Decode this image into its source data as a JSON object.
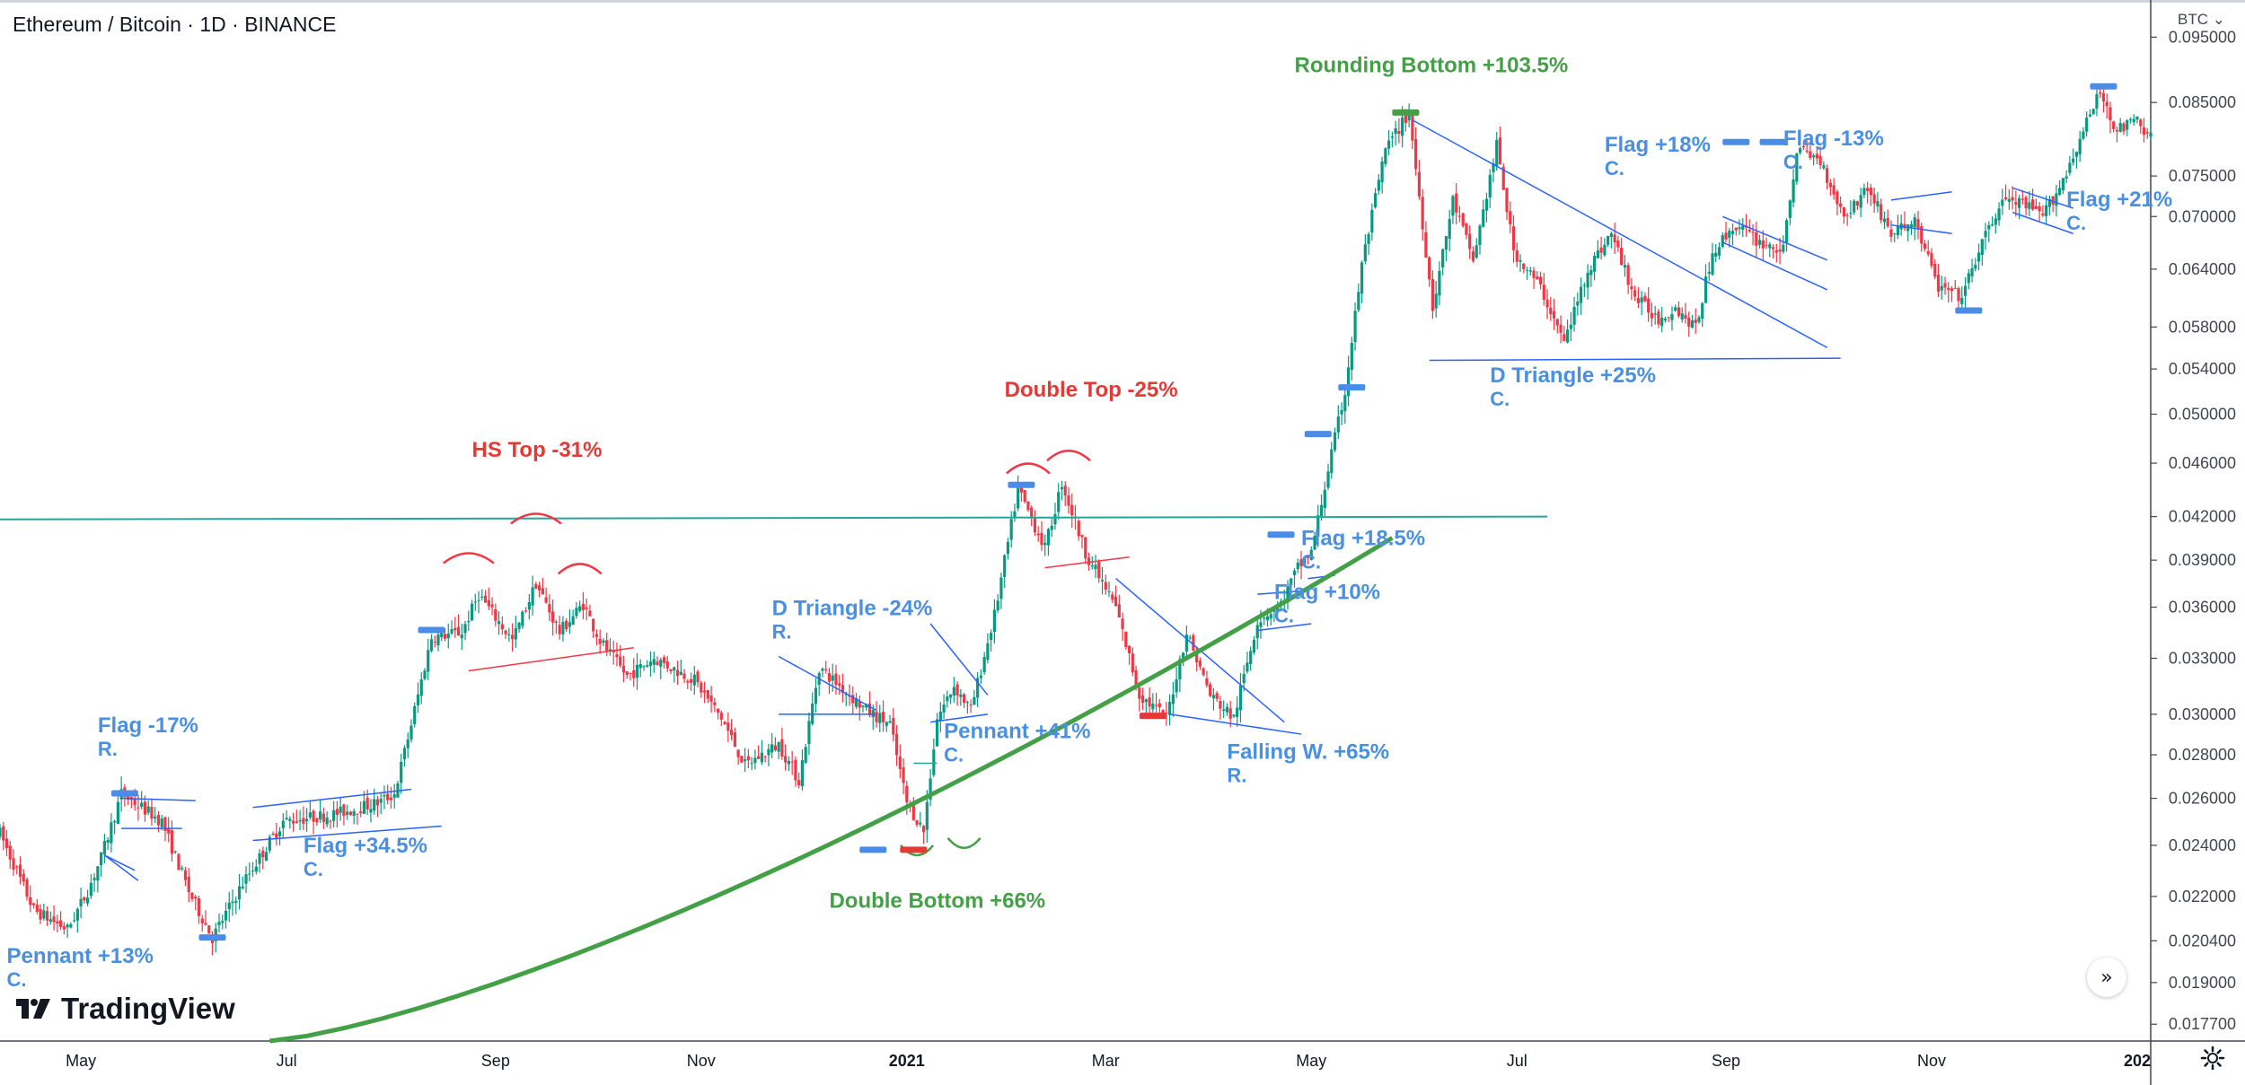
{
  "header": {
    "title": "Ethereum / Bitcoin · 1D · BINANCE",
    "currency_label": "BTC"
  },
  "branding": {
    "logo_text": "TradingView"
  },
  "icons": {
    "settings": "gear-icon",
    "scroll_to_latest": "fast-forward-icon",
    "currency_menu": "chevron-down-icon"
  },
  "colors": {
    "up": "#089981",
    "down": "#f23645",
    "bull_pattern": "#2962ff",
    "bear_pattern": "#f23645",
    "support": "#43a047",
    "level_bar": "#4c8ce9",
    "dead_bar": "#e53935",
    "success_bar": "#43a047"
  },
  "chart_data": {
    "type": "candlestick",
    "title": "Ethereum / Bitcoin · 1D · BINANCE",
    "y_axis": {
      "scale": "log",
      "ylim": [
        0.0172,
        0.1012
      ],
      "ticks": [
        "0.095000",
        "0.085000",
        "0.075000",
        "0.070000",
        "0.064000",
        "0.058000",
        "0.054000",
        "0.050000",
        "0.046000",
        "0.042000",
        "0.039000",
        "0.036000",
        "0.033000",
        "0.030000",
        "0.028000",
        "0.026000",
        "0.024000",
        "0.022000",
        "0.020400",
        "0.019000",
        "0.017700"
      ]
    },
    "x_axis": {
      "range": [
        "2020-04-07",
        "2022-01-05"
      ],
      "ticks": [
        {
          "date": "2020-05-01",
          "label": "May",
          "bold": false
        },
        {
          "date": "2020-07-01",
          "label": "Jul",
          "bold": false
        },
        {
          "date": "2020-09-01",
          "label": "Sep",
          "bold": false
        },
        {
          "date": "2020-11-01",
          "label": "Nov",
          "bold": false
        },
        {
          "date": "2021-01-01",
          "label": "2021",
          "bold": true
        },
        {
          "date": "2021-03-01",
          "label": "Mar",
          "bold": false
        },
        {
          "date": "2021-05-01",
          "label": "May",
          "bold": false
        },
        {
          "date": "2021-07-01",
          "label": "Jul",
          "bold": false
        },
        {
          "date": "2021-09-01",
          "label": "Sep",
          "bold": false
        },
        {
          "date": "2021-11-01",
          "label": "Nov",
          "bold": false
        },
        {
          "date": "2022-01-01",
          "label": "202",
          "bold": true
        }
      ]
    },
    "price_path": [
      [
        "2020-04-07",
        0.0245
      ],
      [
        "2020-04-17",
        0.0215
      ],
      [
        "2020-04-27",
        0.0208
      ],
      [
        "2020-05-03",
        0.0222
      ],
      [
        "2020-05-07",
        0.0235
      ],
      [
        "2020-05-13",
        0.0262
      ],
      [
        "2020-05-25",
        0.025
      ],
      [
        "2020-06-02",
        0.0222
      ],
      [
        "2020-06-09",
        0.0205
      ],
      [
        "2020-06-18",
        0.0225
      ],
      [
        "2020-06-30",
        0.025
      ],
      [
        "2020-07-15",
        0.0253
      ],
      [
        "2020-07-28",
        0.0258
      ],
      [
        "2020-08-02",
        0.0262
      ],
      [
        "2020-08-07",
        0.0295
      ],
      [
        "2020-08-13",
        0.0342
      ],
      [
        "2020-08-22",
        0.0345
      ],
      [
        "2020-08-27",
        0.0368
      ],
      [
        "2020-09-06",
        0.034
      ],
      [
        "2020-09-13",
        0.0375
      ],
      [
        "2020-09-20",
        0.0345
      ],
      [
        "2020-09-27",
        0.0362
      ],
      [
        "2020-10-02",
        0.034
      ],
      [
        "2020-10-10",
        0.032
      ],
      [
        "2020-10-18",
        0.033
      ],
      [
        "2020-10-30",
        0.0318
      ],
      [
        "2020-11-07",
        0.0298
      ],
      [
        "2020-11-14",
        0.0275
      ],
      [
        "2020-11-24",
        0.0285
      ],
      [
        "2020-11-30",
        0.0268
      ],
      [
        "2020-12-06",
        0.0325
      ],
      [
        "2020-12-20",
        0.0302
      ],
      [
        "2020-12-27",
        0.0295
      ],
      [
        "2021-01-01",
        0.0258
      ],
      [
        "2021-01-06",
        0.0246
      ],
      [
        "2021-01-10",
        0.0298
      ],
      [
        "2021-01-15",
        0.0315
      ],
      [
        "2021-01-20",
        0.0302
      ],
      [
        "2021-01-27",
        0.0355
      ],
      [
        "2021-02-03",
        0.044
      ],
      [
        "2021-02-11",
        0.0398
      ],
      [
        "2021-02-16",
        0.0445
      ],
      [
        "2021-02-23",
        0.0395
      ],
      [
        "2021-03-04",
        0.036
      ],
      [
        "2021-03-11",
        0.031
      ],
      [
        "2021-03-19",
        0.0298
      ],
      [
        "2021-03-25",
        0.0345
      ],
      [
        "2021-04-01",
        0.031
      ],
      [
        "2021-04-08",
        0.0298
      ],
      [
        "2021-04-15",
        0.0352
      ],
      [
        "2021-04-22",
        0.0362
      ],
      [
        "2021-04-27",
        0.0385
      ],
      [
        "2021-05-01",
        0.0395
      ],
      [
        "2021-05-06",
        0.0455
      ],
      [
        "2021-05-11",
        0.052
      ],
      [
        "2021-05-16",
        0.0645
      ],
      [
        "2021-05-23",
        0.0785
      ],
      [
        "2021-05-30",
        0.0835
      ],
      [
        "2021-06-06",
        0.06
      ],
      [
        "2021-06-12",
        0.072
      ],
      [
        "2021-06-18",
        0.065
      ],
      [
        "2021-06-25",
        0.079
      ],
      [
        "2021-06-30",
        0.066
      ],
      [
        "2021-07-08",
        0.062
      ],
      [
        "2021-07-15",
        0.0565
      ],
      [
        "2021-07-22",
        0.064
      ],
      [
        "2021-07-29",
        0.068
      ],
      [
        "2021-08-05",
        0.061
      ],
      [
        "2021-08-12",
        0.0588
      ],
      [
        "2021-08-17",
        0.06
      ],
      [
        "2021-08-23",
        0.0578
      ],
      [
        "2021-08-28",
        0.066
      ],
      [
        "2021-09-04",
        0.069
      ],
      [
        "2021-09-11",
        0.067
      ],
      [
        "2021-09-18",
        0.066
      ],
      [
        "2021-09-22",
        0.0785
      ],
      [
        "2021-09-29",
        0.077
      ],
      [
        "2021-10-06",
        0.07
      ],
      [
        "2021-10-13",
        0.0735
      ],
      [
        "2021-10-20",
        0.068
      ],
      [
        "2021-10-27",
        0.0695
      ],
      [
        "2021-11-03",
        0.062
      ],
      [
        "2021-11-10",
        0.061
      ],
      [
        "2021-11-15",
        0.066
      ],
      [
        "2021-11-22",
        0.072
      ],
      [
        "2021-11-28",
        0.0715
      ],
      [
        "2021-12-04",
        0.07
      ],
      [
        "2021-12-10",
        0.0745
      ],
      [
        "2021-12-16",
        0.081
      ],
      [
        "2021-12-21",
        0.0865
      ],
      [
        "2021-12-26",
        0.081
      ],
      [
        "2022-01-01",
        0.0825
      ],
      [
        "2022-01-05",
        0.08
      ]
    ],
    "annotations": [
      {
        "label": [
          "Pennant +13%",
          "C."
        ],
        "date": "2020-04-09",
        "price": 0.01965,
        "color": "blue"
      },
      {
        "label": [
          "Flag -17%",
          "R."
        ],
        "date": "2020-05-06",
        "price": 0.0291,
        "color": "blue"
      },
      {
        "label": [
          "Flag +34.5%",
          "C."
        ],
        "date": "2020-07-06",
        "price": 0.0237,
        "color": "blue"
      },
      {
        "label": [
          "HS Top -31%"
        ],
        "date": "2020-08-25",
        "price": 0.0465,
        "color": "red"
      },
      {
        "label": [
          "D Triangle -24%",
          "R."
        ],
        "date": "2020-11-22",
        "price": 0.0355,
        "color": "blue"
      },
      {
        "label": [
          "Pennant +41%",
          "C."
        ],
        "date": "2021-01-12",
        "price": 0.0288,
        "color": "blue"
      },
      {
        "label": [
          "Double Top -25%"
        ],
        "date": "2021-01-30",
        "price": 0.0515,
        "color": "red"
      },
      {
        "label": [
          "Double Bottom +66%"
        ],
        "date": "2020-12-09",
        "price": 0.02158,
        "color": "green"
      },
      {
        "label": [
          "Falling W. +65%",
          "R."
        ],
        "date": "2021-04-06",
        "price": 0.0278,
        "color": "blue"
      },
      {
        "label": [
          "Flag +18.5%",
          "C."
        ],
        "date": "2021-04-28",
        "price": 0.04,
        "color": "blue"
      },
      {
        "label": [
          "Flag +10%",
          "C."
        ],
        "date": "2021-04-20",
        "price": 0.0365,
        "color": "blue"
      },
      {
        "label": [
          "Rounding Bottom +103.5%"
        ],
        "date": "2021-04-26",
        "price": 0.0895,
        "color": "green"
      },
      {
        "label": [
          "D Triangle +25%",
          "C."
        ],
        "date": "2021-06-23",
        "price": 0.0528,
        "color": "blue"
      },
      {
        "label": [
          "Flag +18%",
          "C."
        ],
        "date": "2021-07-27",
        "price": 0.0782,
        "color": "blue"
      },
      {
        "label": [
          "Flag -13%",
          "C."
        ],
        "date": "2021-09-18",
        "price": 0.079,
        "color": "blue"
      },
      {
        "label": [
          "Flag +21%",
          "C."
        ],
        "date": "2021-12-11",
        "price": 0.0712,
        "color": "blue"
      }
    ]
  }
}
